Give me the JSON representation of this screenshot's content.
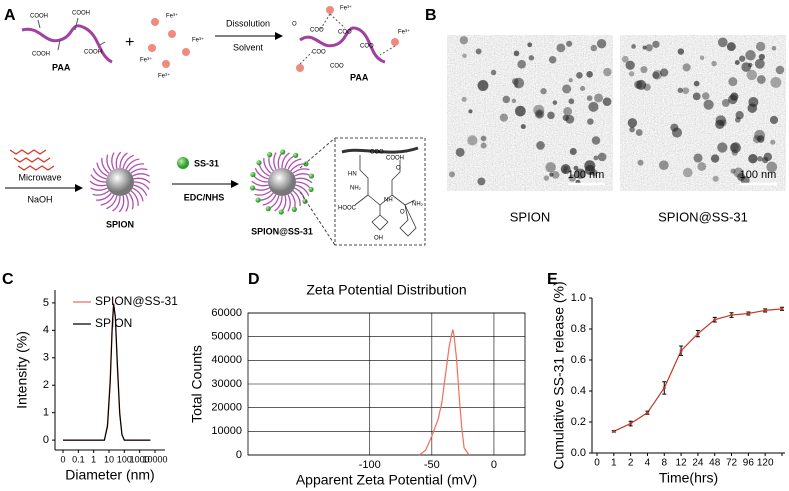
{
  "panels": [
    "A",
    "B",
    "C",
    "D",
    "E"
  ],
  "schematic": {
    "paa_groups": [
      "COOH",
      "COOH",
      "COOH",
      "COOH"
    ],
    "paa_name": "PAA",
    "plus": "+",
    "ions": [
      "Fe³⁺",
      "Fe³⁺",
      "Fe³⁺",
      "Fe³⁺"
    ],
    "step_one": [
      "Dissolution",
      "Solvent"
    ],
    "complex_groups": [
      "COO",
      "COO",
      "COO",
      "COO",
      "COO",
      "O"
    ],
    "complex_ions": [
      "Fe³⁺",
      "Fe³⁺"
    ],
    "complex_name": "PAA",
    "step_two": [
      "Microwave",
      "NaOH"
    ],
    "core_name": "SPION",
    "peptide": "SS-31",
    "coupling": "EDC/NHS",
    "product_name": "SPION@SS-31",
    "structure": [
      "COO",
      "COOH",
      "HN",
      "NH₂",
      "HOOC",
      "NH",
      "O",
      "OH",
      "NH₂",
      "O"
    ]
  },
  "micrographs": {
    "scale_bars": [
      "100 nm",
      "100 nm"
    ],
    "captions": [
      "SPION",
      "SPION@SS-31"
    ]
  },
  "chart_data": [
    {
      "type": "line",
      "xlabel": "Diameter (nm)",
      "ylabel": "Intensity (%)",
      "xlog": true,
      "x": [
        0.01,
        5,
        8,
        12,
        16,
        20,
        26,
        35,
        50,
        70,
        100,
        5000
      ],
      "series": [
        {
          "name": "SPION@SS-31",
          "color": "#f26d5b",
          "values": [
            0,
            0,
            0.6,
            2.3,
            4.2,
            5,
            4.4,
            2.6,
            0.9,
            0.2,
            0,
            0
          ]
        },
        {
          "name": "SPION",
          "color": "#000000",
          "values": [
            0,
            0,
            0.5,
            2.1,
            4.0,
            4.95,
            4.5,
            2.8,
            1.0,
            0.2,
            0,
            0
          ]
        }
      ],
      "xlim": [
        0.003,
        45000
      ],
      "ylim": [
        -0.36,
        5.47
      ],
      "xticks": [
        {
          "value": 0.01,
          "label": "0"
        },
        0.1,
        1,
        10,
        100,
        1000,
        10000
      ],
      "yticks": [
        0,
        1,
        2,
        3,
        4,
        5
      ],
      "legend": "upper right",
      "grid": false
    },
    {
      "type": "line",
      "title": "Zeta Potential Distribution",
      "xlabel": "Apparent Zeta Potential (mV)",
      "ylabel": "Total Counts",
      "x": [
        -60,
        -55,
        -50,
        -45,
        -42,
        -40,
        -38,
        -36,
        -34,
        -33,
        -32,
        -30,
        -28,
        -26,
        -24,
        -20
      ],
      "series": [
        {
          "name": null,
          "color": "#f26d5b",
          "values": [
            0,
            2000,
            8000,
            15000,
            22000,
            30000,
            38000,
            46000,
            51000,
            53000,
            50000,
            40000,
            25000,
            12000,
            3000,
            0
          ]
        }
      ],
      "xlim": [
        -198,
        25
      ],
      "ylim": [
        0,
        60000
      ],
      "xticks": [
        -100,
        -50,
        0
      ],
      "yticks": [
        0,
        10000,
        20000,
        30000,
        40000,
        50000,
        60000
      ],
      "grid": true
    },
    {
      "type": "line",
      "xlabel": "Time(hrs)",
      "ylabel": "Cumulative SS-31 release (%)",
      "categories": [
        "0",
        "1",
        "2",
        "4",
        "8",
        "12",
        "24",
        "48",
        "72",
        "96",
        "120",
        null
      ],
      "series": [
        {
          "name": null,
          "color": "#c0392b",
          "values": [
            null,
            0.14,
            0.19,
            0.26,
            0.42,
            0.66,
            0.77,
            0.86,
            0.89,
            0.9,
            0.92,
            0.93
          ],
          "errors": [
            null,
            0.005,
            0.015,
            0.01,
            0.04,
            0.03,
            0.02,
            0.015,
            0.015,
            0.01,
            0.01,
            0.01
          ]
        }
      ],
      "ylim": [
        0,
        1.0
      ],
      "yticks": [
        {
          "value": 0,
          "label": "0.0"
        },
        0.2,
        0.4,
        0.6,
        0.8,
        {
          "value": 1,
          "label": "1.0"
        }
      ],
      "markers": true,
      "grid": false
    }
  ]
}
